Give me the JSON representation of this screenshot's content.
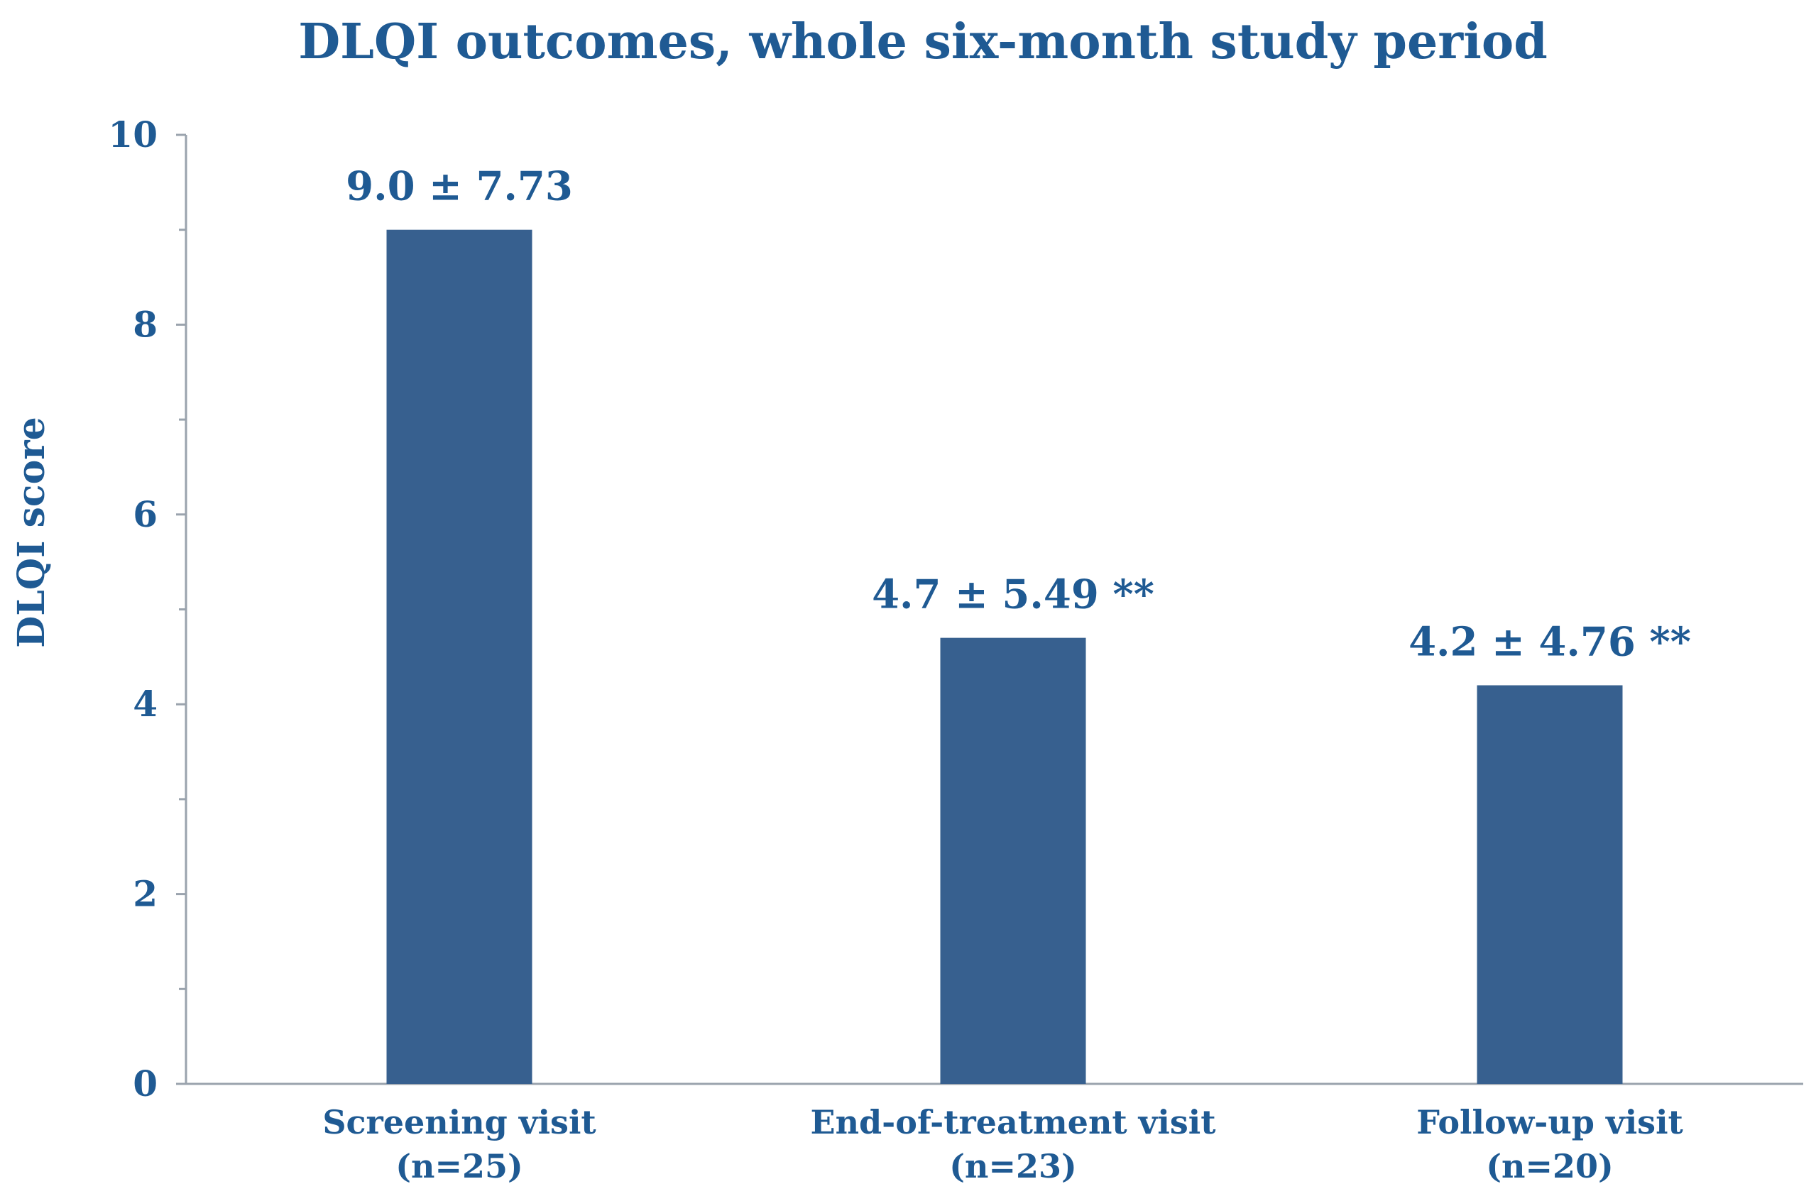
{
  "chart_data": {
    "type": "bar",
    "title": "DLQI outcomes, whole six-month study period",
    "xlabel": "",
    "ylabel": "DLQI score",
    "ylim": [
      0,
      10
    ],
    "yticks": [
      0,
      2,
      4,
      6,
      8,
      10
    ],
    "grid": false,
    "categories": [
      {
        "line1": "Screening visit",
        "line2": "(n=25)"
      },
      {
        "line1": "End-of-treatment visit",
        "line2": "(n=23)"
      },
      {
        "line1": "Follow-up visit",
        "line2": "(n=20)"
      }
    ],
    "values": [
      9.0,
      4.7,
      4.2
    ],
    "data_labels": [
      "9.0 ± 7.73",
      "4.7 ± 5.49 **",
      "4.2 ± 4.76 **"
    ],
    "colors": {
      "bar": "#37608f",
      "text": "#1f5a93",
      "axis": "#9aa3ad"
    }
  }
}
